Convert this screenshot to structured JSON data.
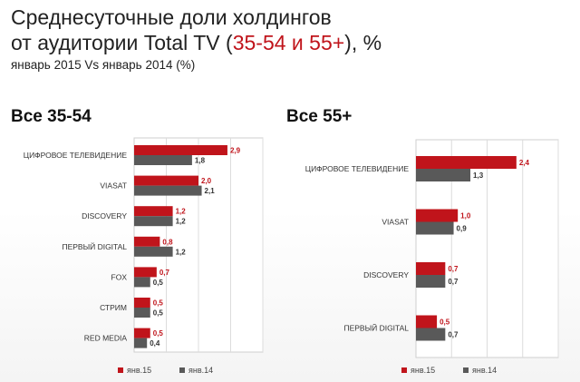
{
  "header": {
    "title_line1": "Среднесуточные доли холдингов",
    "title_line2_pre": "от аудитории Total TV (",
    "title_line2_hl": "35-54 и 55+",
    "title_line2_post": "), %",
    "subtitle": "январь 2015 Vs январь 2014 (%)"
  },
  "colors": {
    "series_jan15": "#c0141b",
    "series_jan14": "#595959",
    "title_accent": "#c0141b"
  },
  "chart_data": [
    {
      "type": "bar",
      "orientation": "horizontal",
      "title": "Все 35-54",
      "categories": [
        "ЦИФРОВОЕ ТЕЛЕВИДЕНИЕ",
        "VIASAT",
        "DISCOVERY",
        "ПЕРВЫЙ DIGITAL",
        "FOX",
        "СТРИМ",
        "RED MEDIA"
      ],
      "series": [
        {
          "name": "янв.15",
          "values": [
            2.9,
            2.0,
            1.2,
            0.8,
            0.7,
            0.5,
            0.5
          ],
          "labels": [
            "2,9",
            "2,0",
            "1,2",
            "0,8",
            "0,7",
            "0,5",
            "0,5"
          ]
        },
        {
          "name": "янв.14",
          "values": [
            1.8,
            2.1,
            1.2,
            1.2,
            0.5,
            0.5,
            0.4
          ],
          "labels": [
            "1,8",
            "2,1",
            "1,2",
            "1,2",
            "0,5",
            "0,5",
            "0,4"
          ]
        }
      ],
      "xlim": [
        0,
        4
      ],
      "grid": true,
      "legend": "bottom"
    },
    {
      "type": "bar",
      "orientation": "horizontal",
      "title": "Все 55+",
      "categories": [
        "ЦИФРОВОЕ ТЕЛЕВИДЕНИЕ",
        "VIASAT",
        "DISCOVERY",
        "ПЕРВЫЙ DIGITAL"
      ],
      "series": [
        {
          "name": "янв.15",
          "values": [
            2.4,
            1.0,
            0.7,
            0.5
          ],
          "labels": [
            "2,4",
            "1,0",
            "0,7",
            "0,5"
          ]
        },
        {
          "name": "янв.14",
          "values": [
            1.3,
            0.9,
            0.7,
            0.7
          ],
          "labels": [
            "1,3",
            "0,9",
            "0,7",
            "0,7"
          ]
        }
      ],
      "xlim": [
        0,
        3.4
      ],
      "grid": true,
      "legend": "bottom"
    }
  ]
}
